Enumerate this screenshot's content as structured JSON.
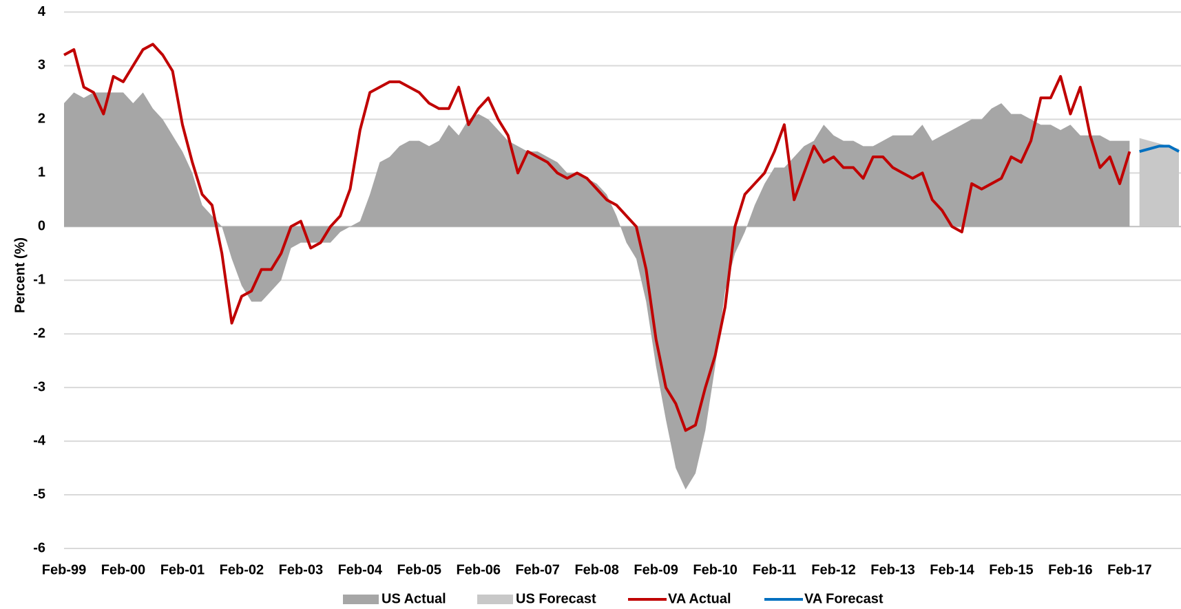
{
  "chart_data": {
    "type": "line",
    "y_label": "Percent (%)",
    "categories": [
      "Feb-99",
      null,
      null,
      null,
      null,
      null,
      "Feb-00",
      null,
      null,
      null,
      null,
      null,
      "Feb-01",
      null,
      null,
      null,
      null,
      null,
      "Feb-02",
      null,
      null,
      null,
      null,
      null,
      "Feb-03",
      null,
      null,
      null,
      null,
      null,
      "Feb-04",
      null,
      null,
      null,
      null,
      null,
      "Feb-05",
      null,
      null,
      null,
      null,
      null,
      "Feb-06",
      null,
      null,
      null,
      null,
      null,
      "Feb-07",
      null,
      null,
      null,
      null,
      null,
      "Feb-08",
      null,
      null,
      null,
      null,
      null,
      "Feb-09",
      null,
      null,
      null,
      null,
      null,
      "Feb-10",
      null,
      null,
      null,
      null,
      null,
      "Feb-11",
      null,
      null,
      null,
      null,
      null,
      "Feb-12",
      null,
      null,
      null,
      null,
      null,
      "Feb-13",
      null,
      null,
      null,
      null,
      null,
      "Feb-14",
      null,
      null,
      null,
      null,
      null,
      "Feb-15",
      null,
      null,
      null,
      null,
      null,
      "Feb-16",
      null,
      null,
      null,
      null,
      null,
      "Feb-17",
      null,
      null,
      null,
      null,
      null
    ],
    "ylim": [
      -6,
      4
    ],
    "yticks": [
      -6,
      -5,
      -4,
      -3,
      -2,
      -1,
      0,
      1,
      2,
      3,
      4
    ],
    "grid": true,
    "legend": "bottom",
    "series": [
      {
        "name": "US Actual",
        "kind": "area",
        "color": "#a6a6a6",
        "values": [
          2.3,
          2.5,
          2.4,
          2.5,
          2.5,
          2.5,
          2.5,
          2.3,
          2.5,
          2.2,
          2.0,
          1.7,
          1.4,
          1.0,
          0.4,
          0.2,
          0.0,
          -0.6,
          -1.1,
          -1.4,
          -1.4,
          -1.2,
          -1.0,
          -0.4,
          -0.3,
          -0.3,
          -0.3,
          -0.3,
          -0.1,
          0.0,
          0.1,
          0.6,
          1.2,
          1.3,
          1.5,
          1.6,
          1.6,
          1.5,
          1.6,
          1.9,
          1.7,
          2.0,
          2.1,
          2.0,
          1.8,
          1.6,
          1.5,
          1.4,
          1.4,
          1.3,
          1.2,
          1.0,
          1.0,
          0.9,
          0.8,
          0.6,
          0.2,
          -0.3,
          -0.6,
          -1.4,
          -2.6,
          -3.6,
          -4.5,
          -4.9,
          -4.6,
          -3.8,
          -2.6,
          -1.2,
          -0.5,
          -0.1,
          0.4,
          0.8,
          1.1,
          1.1,
          1.3,
          1.5,
          1.6,
          1.9,
          1.7,
          1.6,
          1.6,
          1.5,
          1.5,
          1.6,
          1.7,
          1.7,
          1.7,
          1.9,
          1.6,
          1.7,
          1.8,
          1.9,
          2.0,
          2.0,
          2.2,
          2.3,
          2.1,
          2.1,
          2.0,
          1.9,
          1.9,
          1.8,
          1.9,
          1.7,
          1.7,
          1.7,
          1.6,
          1.6,
          1.6,
          null,
          null,
          null,
          null,
          null
        ]
      },
      {
        "name": "US Forecast",
        "kind": "area",
        "color": "#c8c8c8",
        "values": [
          null,
          null,
          null,
          null,
          null,
          null,
          null,
          null,
          null,
          null,
          null,
          null,
          null,
          null,
          null,
          null,
          null,
          null,
          null,
          null,
          null,
          null,
          null,
          null,
          null,
          null,
          null,
          null,
          null,
          null,
          null,
          null,
          null,
          null,
          null,
          null,
          null,
          null,
          null,
          null,
          null,
          null,
          null,
          null,
          null,
          null,
          null,
          null,
          null,
          null,
          null,
          null,
          null,
          null,
          null,
          null,
          null,
          null,
          null,
          null,
          null,
          null,
          null,
          null,
          null,
          null,
          null,
          null,
          null,
          null,
          null,
          null,
          null,
          null,
          null,
          null,
          null,
          null,
          null,
          null,
          null,
          null,
          null,
          null,
          null,
          null,
          null,
          null,
          null,
          null,
          null,
          null,
          null,
          null,
          null,
          null,
          null,
          null,
          null,
          null,
          null,
          null,
          null,
          null,
          null,
          null,
          null,
          null,
          null,
          1.65,
          1.6,
          1.55,
          1.5,
          1.45
        ]
      },
      {
        "name": "VA Actual",
        "kind": "line",
        "color": "#c00000",
        "values": [
          3.2,
          3.3,
          2.6,
          2.5,
          2.1,
          2.8,
          2.7,
          3.0,
          3.3,
          3.4,
          3.2,
          2.9,
          1.9,
          1.2,
          0.6,
          0.4,
          -0.5,
          -1.8,
          -1.3,
          -1.2,
          -0.8,
          -0.8,
          -0.5,
          0.0,
          0.1,
          -0.4,
          -0.3,
          0.0,
          0.2,
          0.7,
          1.8,
          2.5,
          2.6,
          2.7,
          2.7,
          2.6,
          2.5,
          2.3,
          2.2,
          2.2,
          2.6,
          1.9,
          2.2,
          2.4,
          2.0,
          1.7,
          1.0,
          1.4,
          1.3,
          1.2,
          1.0,
          0.9,
          1.0,
          0.9,
          0.7,
          0.5,
          0.4,
          0.2,
          0.0,
          -0.8,
          -2.1,
          -3.0,
          -3.3,
          -3.8,
          -3.7,
          -3.0,
          -2.4,
          -1.5,
          0.0,
          0.6,
          0.8,
          1.0,
          1.4,
          1.9,
          0.5,
          1.0,
          1.5,
          1.2,
          1.3,
          1.1,
          1.1,
          0.9,
          1.3,
          1.3,
          1.1,
          1.0,
          0.9,
          1.0,
          0.5,
          0.3,
          0.0,
          -0.1,
          0.8,
          0.7,
          0.8,
          0.9,
          1.3,
          1.2,
          1.6,
          2.4,
          2.4,
          2.8,
          2.1,
          2.6,
          1.7,
          1.1,
          1.3,
          0.8,
          1.4,
          null,
          null,
          null,
          null,
          null
        ]
      },
      {
        "name": "VA Forecast",
        "kind": "line",
        "color": "#0070c0",
        "values": [
          null,
          null,
          null,
          null,
          null,
          null,
          null,
          null,
          null,
          null,
          null,
          null,
          null,
          null,
          null,
          null,
          null,
          null,
          null,
          null,
          null,
          null,
          null,
          null,
          null,
          null,
          null,
          null,
          null,
          null,
          null,
          null,
          null,
          null,
          null,
          null,
          null,
          null,
          null,
          null,
          null,
          null,
          null,
          null,
          null,
          null,
          null,
          null,
          null,
          null,
          null,
          null,
          null,
          null,
          null,
          null,
          null,
          null,
          null,
          null,
          null,
          null,
          null,
          null,
          null,
          null,
          null,
          null,
          null,
          null,
          null,
          null,
          null,
          null,
          null,
          null,
          null,
          null,
          null,
          null,
          null,
          null,
          null,
          null,
          null,
          null,
          null,
          null,
          null,
          null,
          null,
          null,
          null,
          null,
          null,
          null,
          null,
          null,
          null,
          null,
          null,
          null,
          null,
          null,
          null,
          null,
          null,
          null,
          null,
          1.4,
          1.45,
          1.5,
          1.5,
          1.4
        ]
      }
    ]
  }
}
